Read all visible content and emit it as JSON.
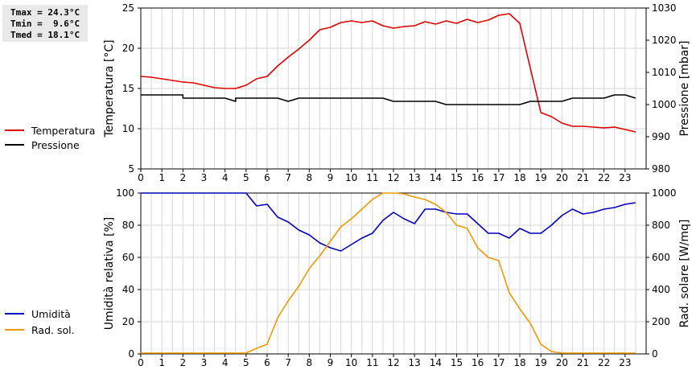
{
  "stats": [
    {
      "label": "Tmax",
      "value": "24.3°C"
    },
    {
      "label": "Tmin",
      "value": "9.6°C"
    },
    {
      "label": "Tmed",
      "value": "18.1°C"
    }
  ],
  "chart_data": [
    {
      "type": "line",
      "x_ticks": [
        "0",
        "1",
        "2",
        "3",
        "4",
        "5",
        "6",
        "7",
        "8",
        "9",
        "10",
        "11",
        "12",
        "13",
        "14",
        "15",
        "16",
        "17",
        "18",
        "19",
        "20",
        "21",
        "22",
        "23"
      ],
      "xlim": [
        0,
        24
      ],
      "ylabel": "Temperatura [°C]",
      "ylim": [
        5,
        25
      ],
      "yticks": [
        5,
        10,
        15,
        20,
        25
      ],
      "y2label": "Pressione [mbar]",
      "y2lim": [
        980,
        1030
      ],
      "y2ticks": [
        980,
        990,
        1000,
        1010,
        1020,
        1030
      ],
      "grid": true,
      "legend_position": "left",
      "series": [
        {
          "name": "Temperatura",
          "color": "#dd0000",
          "axis": "left",
          "x": [
            0,
            0.5,
            1,
            1.5,
            2,
            2.5,
            3,
            3.5,
            4,
            4.5,
            5,
            5.5,
            6,
            6.5,
            7,
            7.5,
            8,
            8.5,
            9,
            9.5,
            10,
            10.5,
            11,
            11.5,
            12,
            12.5,
            13,
            13.5,
            14,
            14.5,
            15,
            15.5,
            16,
            16.5,
            17,
            17.5,
            18,
            18.5,
            19,
            19.5,
            20,
            20.5,
            21,
            21.5,
            22,
            22.5,
            23,
            23.5
          ],
          "y": [
            16.5,
            16.4,
            16.2,
            16.0,
            15.8,
            15.7,
            15.4,
            15.1,
            15.0,
            15.0,
            15.4,
            16.2,
            16.5,
            17.8,
            18.9,
            19.9,
            21.0,
            22.3,
            22.6,
            23.2,
            23.4,
            23.2,
            23.4,
            22.8,
            22.5,
            22.7,
            22.8,
            23.3,
            23.0,
            23.4,
            23.1,
            23.6,
            23.2,
            23.5,
            24.1,
            24.3,
            23.1,
            17.5,
            12.0,
            11.5,
            10.7,
            10.3,
            10.3,
            10.2,
            10.1,
            10.2,
            9.9,
            9.6
          ]
        },
        {
          "name": "Pressione",
          "color": "#000000",
          "axis": "right",
          "x": [
            0,
            2,
            2.001,
            4,
            4.5,
            4.5001,
            6.5,
            7,
            7.5,
            8,
            11.5,
            12,
            14,
            14.5,
            17.5,
            18,
            18.5,
            20,
            20.5,
            22,
            22.5,
            23,
            23.5
          ],
          "y": [
            1003,
            1003,
            1002,
            1002,
            1001,
            1002,
            1002,
            1001,
            1002,
            1002,
            1002,
            1001,
            1001,
            1000,
            1000,
            1000,
            1001,
            1001,
            1002,
            1002,
            1003,
            1003,
            1002
          ]
        }
      ]
    },
    {
      "type": "line",
      "x_ticks": [
        "0",
        "1",
        "2",
        "3",
        "4",
        "5",
        "6",
        "7",
        "8",
        "9",
        "10",
        "11",
        "12",
        "13",
        "14",
        "15",
        "16",
        "17",
        "18",
        "19",
        "20",
        "21",
        "22",
        "23"
      ],
      "xlim": [
        0,
        24
      ],
      "ylabel": "Umidità relativa [%]",
      "ylim": [
        0,
        100
      ],
      "yticks": [
        0,
        20,
        40,
        60,
        80,
        100
      ],
      "y2label": "Rad. solare [W/mq]",
      "y2lim": [
        0,
        1000
      ],
      "y2ticks": [
        0,
        200,
        400,
        600,
        800,
        1000
      ],
      "grid": true,
      "legend_position": "left",
      "series": [
        {
          "name": "Umidità",
          "color": "#0000bb",
          "axis": "left",
          "x": [
            0,
            5,
            5.5,
            6,
            6.5,
            7,
            7.5,
            8,
            8.5,
            9,
            9.5,
            10,
            10.5,
            11,
            11.5,
            12,
            12.5,
            13,
            13.5,
            14,
            14.5,
            15,
            15.5,
            16,
            16.5,
            17,
            17.5,
            18,
            18.5,
            19,
            19.5,
            20,
            20.5,
            21,
            21.5,
            22,
            22.5,
            23,
            23.5
          ],
          "y": [
            100,
            100,
            92,
            93,
            85,
            82,
            77,
            74,
            69,
            66,
            64,
            68,
            72,
            75,
            83,
            88,
            84,
            81,
            90,
            90,
            88,
            87,
            87,
            81,
            75,
            75,
            72,
            78,
            75,
            75,
            80,
            86,
            90,
            87,
            88,
            90,
            91,
            93,
            94
          ]
        },
        {
          "name": "Rad. sol.",
          "color": "#ee9900",
          "axis": "right",
          "x": [
            0,
            5,
            5.5,
            6,
            6.5,
            7,
            7.5,
            8,
            8.5,
            9,
            9.5,
            10,
            10.5,
            11,
            11.5,
            12,
            12.5,
            13,
            13.5,
            14,
            14.5,
            15,
            15.5,
            16,
            16.5,
            17,
            17.5,
            18,
            18.5,
            19,
            19.5,
            20,
            20.5,
            21,
            21.5,
            22,
            22.5,
            23,
            23.5
          ],
          "y": [
            5,
            5,
            35,
            60,
            225,
            330,
            420,
            530,
            610,
            700,
            790,
            840,
            900,
            960,
            1000,
            1000,
            995,
            975,
            960,
            930,
            880,
            800,
            780,
            660,
            600,
            580,
            380,
            280,
            190,
            60,
            15,
            5,
            5,
            5,
            5,
            5,
            5,
            5,
            5
          ]
        }
      ]
    }
  ]
}
